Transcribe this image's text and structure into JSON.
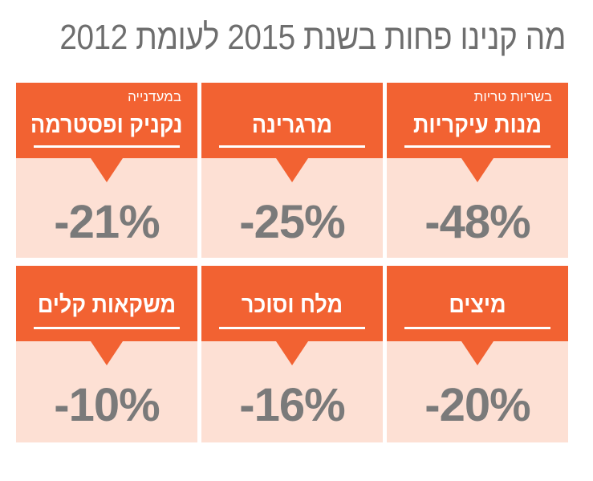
{
  "title": "מה קנינו פחות בשנת 2015 לעומת 2012",
  "cards": [
    {
      "label": "מנות עיקריות",
      "sub": "בשריות טריות",
      "value": "-48%"
    },
    {
      "label": "מרגרינה",
      "sub": "",
      "value": "-25%"
    },
    {
      "label": "נקניק ופסטרמה",
      "sub": "במעדנייה",
      "value": "-21%"
    },
    {
      "label": "מיצים",
      "sub": "",
      "value": "-20%"
    },
    {
      "label": "מלח וסוכר",
      "sub": "",
      "value": "-16%"
    },
    {
      "label": "משקאות קלים",
      "sub": "",
      "value": "-10%"
    }
  ],
  "colors": {
    "accent": "#f26232",
    "panel": "#fde0d4",
    "value": "#7a7a7a",
    "title": "#6e6e6e"
  }
}
